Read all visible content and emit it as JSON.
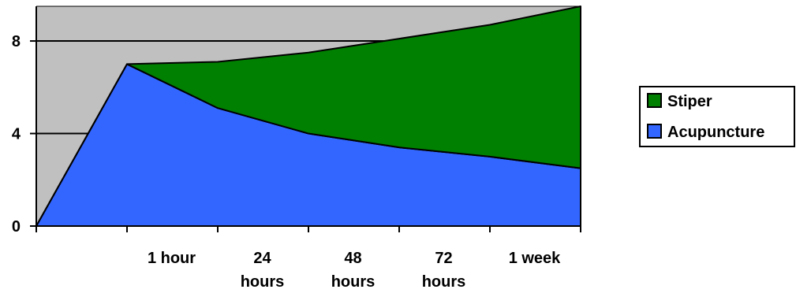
{
  "chart_data": {
    "type": "area",
    "stacked": true,
    "title": "",
    "xlabel": "",
    "ylabel": "",
    "categories": [
      "",
      "1 hour",
      "24 hours",
      "48 hours",
      "72 hours",
      "1 week",
      ""
    ],
    "series": [
      {
        "name": "Acupuncture",
        "color": "#3366ff",
        "values": [
          0,
          7.0,
          5.1,
          4.0,
          3.4,
          3.0,
          2.5
        ]
      },
      {
        "name": "Stiper",
        "color": "#008000",
        "values": [
          0,
          0,
          2.0,
          3.5,
          4.7,
          5.7,
          7.0
        ]
      }
    ],
    "y_ticks": [
      0,
      4,
      8
    ],
    "ylim": [
      0,
      9.5
    ],
    "gridlines": true,
    "plot_background": "#c0c0c0",
    "legend_position": "right"
  }
}
